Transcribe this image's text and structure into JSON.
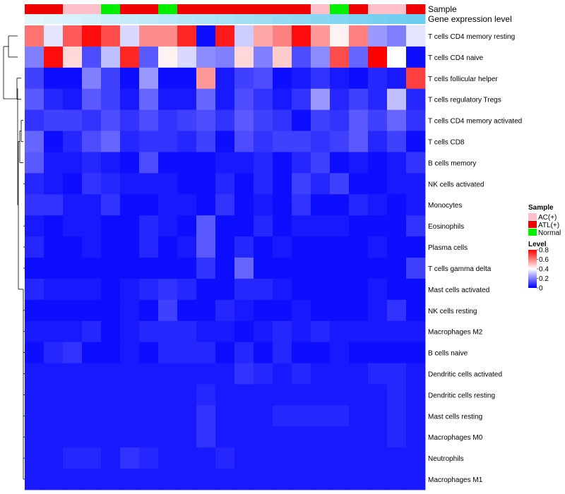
{
  "chart_data": {
    "type": "heatmap",
    "annotation_titles": {
      "sample": "Sample",
      "gene_expression": "Gene expression level"
    },
    "sample_annotation": [
      "ATL(+)",
      "ATL(+)",
      "AC(+)",
      "AC(+)",
      "Normal",
      "ATL(+)",
      "ATL(+)",
      "Normal",
      "ATL(+)",
      "ATL(+)",
      "ATL(+)",
      "ATL(+)",
      "ATL(+)",
      "ATL(+)",
      "ATL(+)",
      "AC(+)",
      "Normal",
      "ATL(+)",
      "AC(+)",
      "AC(+)",
      "ATL(+)"
    ],
    "gene_expression_annotation": [
      0.02,
      0.06,
      0.1,
      0.14,
      0.18,
      0.22,
      0.26,
      0.3,
      0.34,
      0.38,
      0.42,
      0.46,
      0.5,
      0.54,
      0.58,
      0.62,
      0.66,
      0.7,
      0.74,
      0.78,
      0.82
    ],
    "rows": [
      "T cells CD4 memory resting",
      "T cells CD4 naive",
      "T cells follicular helper",
      "T cells regulatory  Tregs",
      "T cells CD4 memory activated",
      "T cells CD8",
      "B cells memory",
      "NK cells activated",
      "Monocytes",
      "Eosinophils",
      "Plasma cells",
      "T cells gamma delta",
      "Mast cells activated",
      "NK cells resting",
      "Macrophages M2",
      "B cells naive",
      "Dendritic cells activated",
      "Dendritic cells resting",
      "Mast cells resting",
      "Macrophages M0",
      "Neutrophils",
      "Macrophages M1"
    ],
    "values": [
      [
        0.62,
        0.36,
        0.66,
        0.78,
        0.68,
        0.34,
        0.58,
        0.58,
        0.74,
        0.02,
        0.76,
        0.32,
        0.54,
        0.6,
        0.78,
        0.56,
        0.42,
        0.6,
        0.24,
        0.2,
        0.36
      ],
      [
        0.2,
        0.78,
        0.46,
        0.12,
        0.3,
        0.74,
        0.14,
        0.42,
        0.34,
        0.22,
        0.2,
        0.46,
        0.2,
        0.48,
        0.12,
        0.22,
        0.68,
        0.16,
        0.8,
        0.4,
        0.02
      ],
      [
        0.1,
        0.02,
        0.02,
        0.2,
        0.1,
        0.02,
        0.24,
        0.02,
        0.02,
        0.56,
        0.04,
        0.1,
        0.12,
        0.02,
        0.04,
        0.08,
        0.04,
        0.02,
        0.06,
        0.04,
        0.7
      ],
      [
        0.14,
        0.06,
        0.04,
        0.14,
        0.1,
        0.04,
        0.16,
        0.04,
        0.04,
        0.16,
        0.04,
        0.12,
        0.08,
        0.04,
        0.08,
        0.24,
        0.06,
        0.1,
        0.06,
        0.3,
        0.06
      ],
      [
        0.08,
        0.1,
        0.1,
        0.08,
        0.12,
        0.08,
        0.12,
        0.08,
        0.1,
        0.12,
        0.08,
        0.14,
        0.1,
        0.08,
        0.02,
        0.1,
        0.08,
        0.14,
        0.1,
        0.16,
        0.08
      ],
      [
        0.16,
        0.02,
        0.06,
        0.12,
        0.16,
        0.06,
        0.08,
        0.08,
        0.06,
        0.1,
        0.02,
        0.12,
        0.08,
        0.1,
        0.1,
        0.08,
        0.1,
        0.14,
        0.06,
        0.1,
        0.02
      ],
      [
        0.14,
        0.04,
        0.04,
        0.06,
        0.04,
        0.02,
        0.12,
        0.02,
        0.02,
        0.02,
        0.04,
        0.04,
        0.06,
        0.02,
        0.06,
        0.1,
        0.02,
        0.04,
        0.02,
        0.04,
        0.08
      ],
      [
        0.06,
        0.04,
        0.02,
        0.08,
        0.06,
        0.04,
        0.04,
        0.04,
        0.02,
        0.02,
        0.06,
        0.02,
        0.06,
        0.02,
        0.1,
        0.06,
        0.1,
        0.02,
        0.02,
        0.04,
        0.04
      ],
      [
        0.08,
        0.08,
        0.04,
        0.04,
        0.08,
        0.02,
        0.02,
        0.04,
        0.04,
        0.02,
        0.08,
        0.02,
        0.04,
        0.02,
        0.08,
        0.02,
        0.02,
        0.06,
        0.04,
        0.02,
        0.04
      ],
      [
        0.04,
        0.02,
        0.04,
        0.04,
        0.02,
        0.02,
        0.06,
        0.04,
        0.02,
        0.14,
        0.02,
        0.02,
        0.06,
        0.02,
        0.04,
        0.04,
        0.04,
        0.02,
        0.02,
        0.02,
        0.08
      ],
      [
        0.06,
        0.02,
        0.02,
        0.04,
        0.02,
        0.02,
        0.06,
        0.02,
        0.04,
        0.14,
        0.02,
        0.06,
        0.02,
        0.04,
        0.02,
        0.02,
        0.02,
        0.02,
        0.04,
        0.02,
        0.02
      ],
      [
        0.02,
        0.02,
        0.02,
        0.02,
        0.02,
        0.02,
        0.02,
        0.02,
        0.02,
        0.08,
        0.02,
        0.16,
        0.02,
        0.02,
        0.02,
        0.02,
        0.02,
        0.02,
        0.02,
        0.02,
        0.1
      ],
      [
        0.06,
        0.04,
        0.04,
        0.04,
        0.02,
        0.04,
        0.06,
        0.08,
        0.06,
        0.02,
        0.02,
        0.06,
        0.06,
        0.04,
        0.02,
        0.02,
        0.02,
        0.02,
        0.04,
        0.02,
        0.02
      ],
      [
        0.02,
        0.02,
        0.02,
        0.02,
        0.02,
        0.04,
        0.02,
        0.1,
        0.02,
        0.02,
        0.06,
        0.04,
        0.02,
        0.02,
        0.04,
        0.02,
        0.02,
        0.02,
        0.04,
        0.08,
        0.02
      ],
      [
        0.04,
        0.04,
        0.04,
        0.06,
        0.02,
        0.04,
        0.06,
        0.06,
        0.06,
        0.04,
        0.04,
        0.02,
        0.04,
        0.06,
        0.04,
        0.06,
        0.04,
        0.04,
        0.04,
        0.04,
        0.04
      ],
      [
        0.02,
        0.06,
        0.08,
        0.02,
        0.02,
        0.04,
        0.02,
        0.06,
        0.06,
        0.06,
        0.02,
        0.06,
        0.02,
        0.06,
        0.02,
        0.02,
        0.04,
        0.02,
        0.02,
        0.02,
        0.02
      ],
      [
        0.04,
        0.04,
        0.04,
        0.04,
        0.04,
        0.04,
        0.04,
        0.04,
        0.04,
        0.04,
        0.04,
        0.08,
        0.06,
        0.04,
        0.06,
        0.04,
        0.04,
        0.04,
        0.06,
        0.06,
        0.04
      ],
      [
        0.04,
        0.04,
        0.04,
        0.04,
        0.04,
        0.04,
        0.04,
        0.04,
        0.04,
        0.06,
        0.04,
        0.04,
        0.04,
        0.04,
        0.04,
        0.04,
        0.04,
        0.04,
        0.04,
        0.06,
        0.04
      ],
      [
        0.04,
        0.04,
        0.04,
        0.04,
        0.04,
        0.04,
        0.04,
        0.04,
        0.04,
        0.08,
        0.04,
        0.04,
        0.04,
        0.06,
        0.06,
        0.06,
        0.06,
        0.04,
        0.04,
        0.06,
        0.04
      ],
      [
        0.04,
        0.04,
        0.04,
        0.04,
        0.04,
        0.04,
        0.04,
        0.04,
        0.04,
        0.08,
        0.04,
        0.04,
        0.04,
        0.04,
        0.04,
        0.04,
        0.04,
        0.04,
        0.04,
        0.06,
        0.04
      ],
      [
        0.04,
        0.04,
        0.06,
        0.06,
        0.04,
        0.08,
        0.06,
        0.04,
        0.04,
        0.04,
        0.06,
        0.04,
        0.04,
        0.04,
        0.04,
        0.04,
        0.04,
        0.04,
        0.04,
        0.04,
        0.04
      ],
      [
        0.04,
        0.04,
        0.04,
        0.04,
        0.04,
        0.04,
        0.04,
        0.04,
        0.04,
        0.04,
        0.04,
        0.04,
        0.04,
        0.04,
        0.04,
        0.04,
        0.04,
        0.04,
        0.04,
        0.04,
        0.04
      ]
    ],
    "legend_sample": {
      "title": "Sample",
      "items": [
        {
          "label": "AC(+)",
          "color": "#ffc0cb"
        },
        {
          "label": "ATL(+)",
          "color": "#ee0000"
        },
        {
          "label": "Normal",
          "color": "#00ee00"
        }
      ]
    },
    "legend_level": {
      "title": "Level",
      "ticks": [
        0.8,
        0.6,
        0.4,
        0.2,
        0
      ],
      "tick_labels": [
        "0.8",
        "0.6",
        "0.4",
        "0.2",
        "0"
      ],
      "range": [
        0,
        0.8
      ],
      "colors": {
        "low": "#0000ff",
        "mid": "#ffffff",
        "high": "#ff0000"
      }
    },
    "gene_expression_colors": {
      "low": "#e8f6fc",
      "high": "#4fc3ec"
    },
    "dendrogram": "row"
  }
}
